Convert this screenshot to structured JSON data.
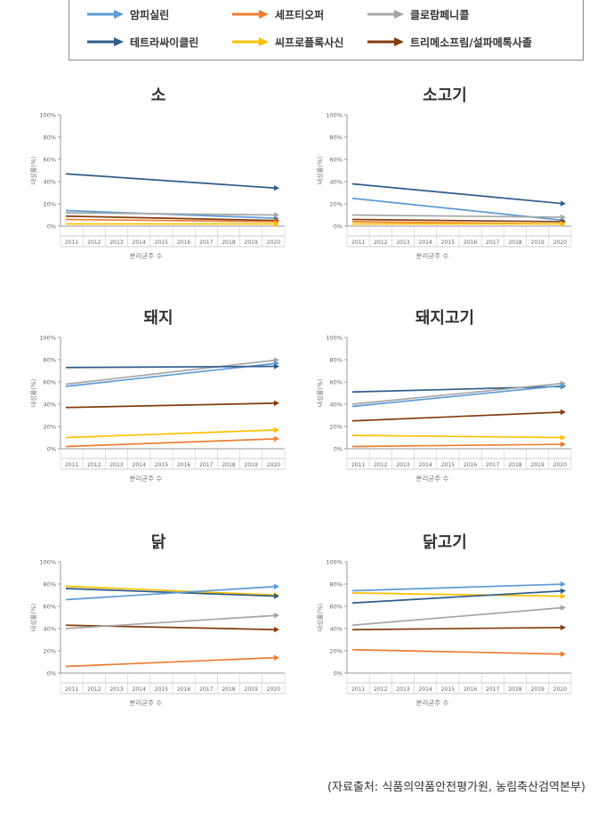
{
  "legend": {
    "items": [
      {
        "label": "암피실린",
        "color": "#5b9bd5"
      },
      {
        "label": "세프티오퍼",
        "color": "#ed7d31"
      },
      {
        "label": "클로람페니콜",
        "color": "#a5a5a5"
      },
      {
        "label": "테트라싸이클린",
        "color": "#2e5c8a"
      },
      {
        "label": "씨프로플록사신",
        "color": "#ffc000"
      },
      {
        "label": "트리메소프림/설파메톡사졸",
        "color": "#843c0c"
      }
    ]
  },
  "source": "(자료출처: 식품의약품안전평가원, 농림축산검역본부)",
  "chart_data": [
    {
      "type": "line",
      "title": "소",
      "ylabel": "내성률(%)",
      "xlabel": "분리균주 수",
      "x": [
        "2011",
        "2012",
        "2013",
        "2014",
        "2015",
        "2016",
        "2017",
        "2018",
        "2019",
        "2020"
      ],
      "ylim": [
        0,
        100
      ],
      "yticks": [
        "0%",
        "20%",
        "40%",
        "60%",
        "80%",
        "100%"
      ],
      "series": [
        {
          "name": "테트라싸이클린",
          "color": "#2e5c8a",
          "start": 47,
          "end": 34
        },
        {
          "name": "암피실린",
          "color": "#5b9bd5",
          "start": 14,
          "end": 7
        },
        {
          "name": "클로람페니콜",
          "color": "#a5a5a5",
          "start": 12,
          "end": 10
        },
        {
          "name": "트리메소프림/설파메톡사졸",
          "color": "#843c0c",
          "start": 9,
          "end": 5
        },
        {
          "name": "세프티오퍼",
          "color": "#ed7d31",
          "start": 6,
          "end": 4
        },
        {
          "name": "씨프로플록사신",
          "color": "#ffc000",
          "start": 2,
          "end": 2
        }
      ]
    },
    {
      "type": "line",
      "title": "소고기",
      "ylabel": "내성률(%)",
      "xlabel": "분리균주 수",
      "x": [
        "2011",
        "2012",
        "2013",
        "2014",
        "2015",
        "2016",
        "2017",
        "2018",
        "2019",
        "2020"
      ],
      "ylim": [
        0,
        100
      ],
      "yticks": [
        "0%",
        "20%",
        "40%",
        "60%",
        "80%",
        "100%"
      ],
      "series": [
        {
          "name": "테트라싸이클린",
          "color": "#2e5c8a",
          "start": 38,
          "end": 20
        },
        {
          "name": "암피실린",
          "color": "#5b9bd5",
          "start": 25,
          "end": 5
        },
        {
          "name": "클로람페니콜",
          "color": "#a5a5a5",
          "start": 10,
          "end": 8
        },
        {
          "name": "트리메소프림/설파메톡사졸",
          "color": "#843c0c",
          "start": 6,
          "end": 4
        },
        {
          "name": "세프티오퍼",
          "color": "#ed7d31",
          "start": 4,
          "end": 2
        },
        {
          "name": "씨프로플록사신",
          "color": "#ffc000",
          "start": 2,
          "end": 2
        }
      ]
    },
    {
      "type": "line",
      "title": "돼지",
      "ylabel": "내성률(%)",
      "xlabel": "분리균주 수",
      "x": [
        "2011",
        "2012",
        "2013",
        "2014",
        "2015",
        "2016",
        "2017",
        "2018",
        "2019",
        "2020"
      ],
      "ylim": [
        0,
        100
      ],
      "yticks": [
        "0%",
        "20%",
        "40%",
        "60%",
        "80%",
        "100%"
      ],
      "series": [
        {
          "name": "클로람페니콜",
          "color": "#a5a5a5",
          "start": 58,
          "end": 80
        },
        {
          "name": "암피실린",
          "color": "#5b9bd5",
          "start": 56,
          "end": 77
        },
        {
          "name": "테트라싸이클린",
          "color": "#2e5c8a",
          "start": 73,
          "end": 74
        },
        {
          "name": "트리메소프림/설파메톡사졸",
          "color": "#843c0c",
          "start": 37,
          "end": 41
        },
        {
          "name": "씨프로플록사신",
          "color": "#ffc000",
          "start": 10,
          "end": 17
        },
        {
          "name": "세프티오퍼",
          "color": "#ed7d31",
          "start": 2,
          "end": 9
        }
      ]
    },
    {
      "type": "line",
      "title": "돼지고기",
      "ylabel": "내성률(%)",
      "xlabel": "분리균주 수",
      "x": [
        "2011",
        "2012",
        "2013",
        "2014",
        "2015",
        "2016",
        "2017",
        "2018",
        "2019",
        "2020"
      ],
      "ylim": [
        0,
        100
      ],
      "yticks": [
        "0%",
        "20%",
        "40%",
        "60%",
        "80%",
        "100%"
      ],
      "series": [
        {
          "name": "테트라싸이클린",
          "color": "#2e5c8a",
          "start": 51,
          "end": 56
        },
        {
          "name": "클로람페니콜",
          "color": "#a5a5a5",
          "start": 40,
          "end": 59
        },
        {
          "name": "암피실린",
          "color": "#5b9bd5",
          "start": 38,
          "end": 57
        },
        {
          "name": "트리메소프림/설파메톡사졸",
          "color": "#843c0c",
          "start": 25,
          "end": 33
        },
        {
          "name": "씨프로플록사신",
          "color": "#ffc000",
          "start": 12,
          "end": 10
        },
        {
          "name": "세프티오퍼",
          "color": "#ed7d31",
          "start": 2,
          "end": 4
        }
      ]
    },
    {
      "type": "line",
      "title": "닭",
      "ylabel": "내성률(%)",
      "xlabel": "분리균주 수",
      "x": [
        "2011",
        "2012",
        "2013",
        "2014",
        "2015",
        "2016",
        "2017",
        "2018",
        "2019",
        "2020"
      ],
      "ylim": [
        0,
        100
      ],
      "yticks": [
        "0%",
        "20%",
        "40%",
        "60%",
        "80%",
        "100%"
      ],
      "series": [
        {
          "name": "씨프로플록사신",
          "color": "#ffc000",
          "start": 78,
          "end": 70
        },
        {
          "name": "테트라싸이클린",
          "color": "#2e5c8a",
          "start": 76,
          "end": 69
        },
        {
          "name": "암피실린",
          "color": "#5b9bd5",
          "start": 66,
          "end": 78
        },
        {
          "name": "트리메소프림/설파메톡사졸",
          "color": "#843c0c",
          "start": 43,
          "end": 39
        },
        {
          "name": "클로람페니콜",
          "color": "#a5a5a5",
          "start": 40,
          "end": 52
        },
        {
          "name": "세프티오퍼",
          "color": "#ed7d31",
          "start": 6,
          "end": 14
        }
      ]
    },
    {
      "type": "line",
      "title": "닭고기",
      "ylabel": "내성률(%)",
      "xlabel": "분리균주 수",
      "x": [
        "2011",
        "2012",
        "2013",
        "2014",
        "2015",
        "2016",
        "2017",
        "2018",
        "2019",
        "2020"
      ],
      "ylim": [
        0,
        100
      ],
      "yticks": [
        "0%",
        "20%",
        "40%",
        "60%",
        "80%",
        "100%"
      ],
      "series": [
        {
          "name": "암피실린",
          "color": "#5b9bd5",
          "start": 74,
          "end": 80
        },
        {
          "name": "씨프로플록사신",
          "color": "#ffc000",
          "start": 72,
          "end": 69
        },
        {
          "name": "테트라싸이클린",
          "color": "#2e5c8a",
          "start": 63,
          "end": 74
        },
        {
          "name": "클로람페니콜",
          "color": "#a5a5a5",
          "start": 43,
          "end": 59
        },
        {
          "name": "트리메소프림/설파메톡사졸",
          "color": "#843c0c",
          "start": 39,
          "end": 41
        },
        {
          "name": "세프티오퍼",
          "color": "#ed7d31",
          "start": 21,
          "end": 17
        }
      ]
    }
  ]
}
